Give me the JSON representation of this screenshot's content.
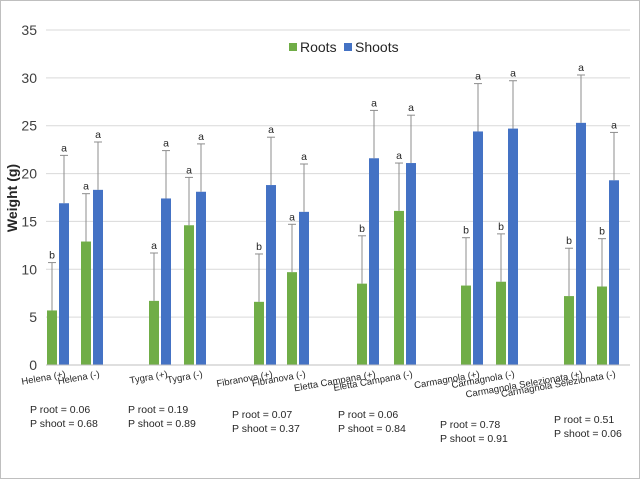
{
  "chart_data": {
    "type": "bar",
    "ylabel": "Weight (g)",
    "ylim": [
      0,
      35
    ],
    "yticks": [
      0,
      5,
      10,
      15,
      20,
      25,
      30,
      35
    ],
    "grid": true,
    "legend_position": "top",
    "categories": [
      "Helena (+)",
      "Helena (-)",
      "Tygra (+)",
      "Tygra (-)",
      "Fibranova (+)",
      "Fibranova (-)",
      "Eletta Campana (+)",
      "Eletta Campana (-)",
      "Carmagnola (+)",
      "Carmagnola (-)",
      "Carmagnola Selezionata (+)",
      "Carmagnola Selezionata (-)"
    ],
    "series": [
      {
        "name": "Roots",
        "color": "#70ad47",
        "values": [
          5.7,
          12.9,
          6.7,
          14.6,
          6.6,
          9.7,
          8.5,
          16.1,
          8.3,
          8.7,
          7.2,
          8.2
        ],
        "errors": [
          5.0,
          5.0,
          5.0,
          5.0,
          5.0,
          5.0,
          5.0,
          5.0,
          5.0,
          5.0,
          5.0,
          5.0
        ],
        "letters": [
          "b",
          "a",
          "a",
          "a",
          "b",
          "a",
          "b",
          "a",
          "b",
          "b",
          "b",
          "b"
        ]
      },
      {
        "name": "Shoots",
        "color": "#4472c4",
        "values": [
          16.9,
          18.3,
          17.4,
          18.1,
          18.8,
          16.0,
          21.6,
          21.1,
          24.4,
          24.7,
          25.3,
          19.3
        ],
        "errors": [
          5.0,
          5.0,
          5.0,
          5.0,
          5.0,
          5.0,
          5.0,
          5.0,
          5.0,
          5.0,
          5.0,
          5.0
        ],
        "letters": [
          "a",
          "a",
          "a",
          "a",
          "a",
          "a",
          "a",
          "a",
          "a",
          "a",
          "a",
          "a"
        ]
      }
    ],
    "p_values": [
      {
        "group": "Helena",
        "root": "P root = 0.06",
        "shoot": "P shoot = 0.68"
      },
      {
        "group": "Tygra",
        "root": "P root = 0.19",
        "shoot": "P shoot = 0.89"
      },
      {
        "group": "Fibranova",
        "root": "P root = 0.07",
        "shoot": "P shoot = 0.37"
      },
      {
        "group": "Eletta Campana",
        "root": "P root = 0.06",
        "shoot": "P shoot = 0.84"
      },
      {
        "group": "Carmagnola",
        "root": "P root = 0.78",
        "shoot": "P shoot = 0.91"
      },
      {
        "group": "Carmagnola Selezionata",
        "root": "P root = 0.51",
        "shoot": "P shoot = 0.06"
      }
    ]
  },
  "colors": {
    "grid": "#d9d9d9",
    "error_bar": "#8c8c8c",
    "axis": "#bfbfbf"
  }
}
